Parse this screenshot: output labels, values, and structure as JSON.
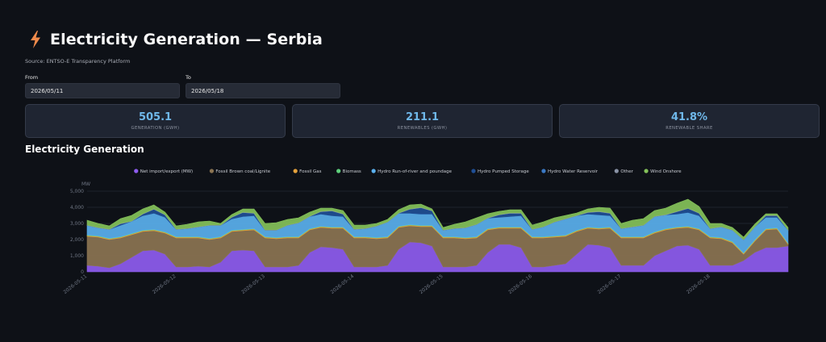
{
  "header": {
    "title": "Electricity Generation — Serbia",
    "icon": "lightning-bolt-icon"
  },
  "source": "Source: ENTSO-E Transparency Platform",
  "filters": {
    "from_label": "From",
    "from_value": "2026/05/11",
    "to_label": "To",
    "to_value": "2026/05/18"
  },
  "metrics": [
    {
      "value": "505.1",
      "label": "GENERATION (GWH)"
    },
    {
      "value": "211.1",
      "label": "RENEWABLES (GWH)"
    },
    {
      "value": "41.8%",
      "label": "RENEWABLE SHARE"
    }
  ],
  "chart_section_title": "Electricity Generation",
  "chart_data": {
    "type": "area",
    "stacked": true,
    "ylabel": "MW",
    "ylim": [
      0,
      5000
    ],
    "yticks": [
      0,
      1000,
      2000,
      3000,
      4000,
      5000
    ],
    "ytick_labels": [
      "0",
      "1,000",
      "2,000",
      "3,000",
      "4,000",
      "5,000"
    ],
    "xlim": [
      "2026-05-11",
      "2026-05-18 21:00"
    ],
    "xticks": [
      "2026-05-11",
      "2026-05-12",
      "2026-05-13",
      "2026-05-14",
      "2026-05-15",
      "2026-05-16",
      "2026-05-17",
      "2026-05-18"
    ],
    "grid": true,
    "legend_position": "top",
    "x": [
      "2026-05-11 00:00",
      "2026-05-11 03:00",
      "2026-05-11 06:00",
      "2026-05-11 09:00",
      "2026-05-11 12:00",
      "2026-05-11 15:00",
      "2026-05-11 18:00",
      "2026-05-11 21:00",
      "2026-05-12 00:00",
      "2026-05-12 03:00",
      "2026-05-12 06:00",
      "2026-05-12 09:00",
      "2026-05-12 12:00",
      "2026-05-12 15:00",
      "2026-05-12 18:00",
      "2026-05-12 21:00",
      "2026-05-13 00:00",
      "2026-05-13 03:00",
      "2026-05-13 06:00",
      "2026-05-13 09:00",
      "2026-05-13 12:00",
      "2026-05-13 15:00",
      "2026-05-13 18:00",
      "2026-05-13 21:00",
      "2026-05-14 00:00",
      "2026-05-14 03:00",
      "2026-05-14 06:00",
      "2026-05-14 09:00",
      "2026-05-14 12:00",
      "2026-05-14 15:00",
      "2026-05-14 18:00",
      "2026-05-14 21:00",
      "2026-05-15 00:00",
      "2026-05-15 03:00",
      "2026-05-15 06:00",
      "2026-05-15 09:00",
      "2026-05-15 12:00",
      "2026-05-15 15:00",
      "2026-05-15 18:00",
      "2026-05-15 21:00",
      "2026-05-16 00:00",
      "2026-05-16 03:00",
      "2026-05-16 06:00",
      "2026-05-16 09:00",
      "2026-05-16 12:00",
      "2026-05-16 15:00",
      "2026-05-16 18:00",
      "2026-05-16 21:00",
      "2026-05-17 00:00",
      "2026-05-17 03:00",
      "2026-05-17 06:00",
      "2026-05-17 09:00",
      "2026-05-17 12:00",
      "2026-05-17 15:00",
      "2026-05-17 18:00",
      "2026-05-17 21:00",
      "2026-05-18 00:00",
      "2026-05-18 03:00",
      "2026-05-18 06:00",
      "2026-05-18 09:00",
      "2026-05-18 12:00",
      "2026-05-18 15:00",
      "2026-05-18 18:00",
      "2026-05-18 21:00"
    ],
    "series": [
      {
        "name": "Net import/export (MW)",
        "color": "#8e5cf0",
        "values": [
          400,
          350,
          250,
          500,
          900,
          1300,
          1350,
          1100,
          300,
          300,
          350,
          300,
          600,
          1300,
          1350,
          1300,
          300,
          300,
          300,
          400,
          1200,
          1550,
          1500,
          1400,
          300,
          300,
          300,
          400,
          1400,
          1850,
          1800,
          1600,
          300,
          300,
          300,
          400,
          1200,
          1700,
          1700,
          1500,
          300,
          300,
          400,
          500,
          1100,
          1700,
          1650,
          1500,
          400,
          400,
          400,
          1000,
          1300,
          1600,
          1650,
          1400,
          400,
          400,
          400,
          700,
          1200,
          1500,
          1500,
          1600
        ]
      },
      {
        "name": "Fossil Brown coal/Lignite",
        "color": "#8b7452",
        "values": [
          1800,
          1800,
          1750,
          1600,
          1400,
          1200,
          1200,
          1300,
          1800,
          1800,
          1750,
          1700,
          1500,
          1200,
          1200,
          1300,
          1800,
          1750,
          1800,
          1700,
          1400,
          1200,
          1200,
          1300,
          1800,
          1800,
          1750,
          1700,
          1350,
          1000,
          1000,
          1200,
          1800,
          1800,
          1750,
          1700,
          1400,
          1000,
          1000,
          1200,
          1800,
          1800,
          1750,
          1700,
          1400,
          1000,
          1000,
          1200,
          1700,
          1700,
          1700,
          1400,
          1300,
          1100,
          1100,
          1200,
          1700,
          1650,
          1400,
          400,
          700,
          1100,
          1150,
          100
        ]
      },
      {
        "name": "Fossil Gas",
        "color": "#e6a23c",
        "values": [
          50,
          50,
          50,
          50,
          50,
          50,
          50,
          50,
          50,
          50,
          50,
          50,
          50,
          50,
          50,
          50,
          50,
          50,
          50,
          50,
          50,
          50,
          50,
          50,
          50,
          50,
          50,
          50,
          50,
          50,
          50,
          50,
          50,
          50,
          50,
          50,
          50,
          50,
          50,
          50,
          50,
          50,
          50,
          50,
          50,
          50,
          50,
          50,
          50,
          50,
          50,
          50,
          50,
          50,
          50,
          50,
          50,
          50,
          50,
          50,
          50,
          50,
          50,
          50
        ]
      },
      {
        "name": "Biomass",
        "color": "#5fd17c",
        "values": [
          30,
          30,
          30,
          30,
          30,
          30,
          30,
          30,
          30,
          30,
          30,
          30,
          30,
          30,
          30,
          30,
          30,
          30,
          30,
          30,
          30,
          30,
          30,
          30,
          30,
          30,
          30,
          30,
          30,
          30,
          30,
          30,
          30,
          30,
          30,
          30,
          30,
          30,
          30,
          30,
          30,
          30,
          30,
          30,
          30,
          30,
          30,
          30,
          30,
          30,
          30,
          30,
          30,
          30,
          30,
          30,
          30,
          30,
          30,
          30,
          30,
          30,
          30,
          30
        ]
      },
      {
        "name": "Hydro Run-of-river and poundage",
        "color": "#5ab0ee",
        "values": [
          600,
          500,
          550,
          700,
          750,
          900,
          1000,
          900,
          450,
          500,
          600,
          800,
          700,
          700,
          800,
          800,
          400,
          450,
          700,
          850,
          750,
          750,
          700,
          650,
          450,
          500,
          700,
          900,
          800,
          700,
          700,
          700,
          400,
          500,
          600,
          750,
          650,
          600,
          650,
          700,
          450,
          600,
          850,
          1000,
          900,
          800,
          800,
          700,
          500,
          600,
          700,
          950,
          850,
          800,
          850,
          800,
          500,
          650,
          700,
          800,
          800,
          700,
          650,
          800
        ]
      },
      {
        "name": "Hydro Pumped Storage",
        "color": "#1f4f96",
        "values": [
          0,
          0,
          0,
          100,
          0,
          100,
          250,
          150,
          0,
          0,
          0,
          0,
          0,
          100,
          250,
          150,
          0,
          0,
          0,
          0,
          0,
          150,
          300,
          150,
          0,
          0,
          0,
          0,
          0,
          250,
          400,
          200,
          0,
          0,
          0,
          0,
          0,
          150,
          200,
          150,
          0,
          0,
          0,
          0,
          0,
          100,
          200,
          150,
          0,
          0,
          0,
          0,
          0,
          150,
          250,
          150,
          0,
          0,
          0,
          0,
          0,
          100,
          100,
          0
        ]
      },
      {
        "name": "Hydro Water Reservoir",
        "color": "#3a78c4",
        "values": [
          0,
          0,
          0,
          0,
          0,
          0,
          0,
          0,
          0,
          0,
          0,
          0,
          0,
          0,
          0,
          0,
          0,
          0,
          0,
          0,
          0,
          0,
          0,
          0,
          0,
          0,
          0,
          0,
          0,
          0,
          0,
          0,
          0,
          0,
          0,
          0,
          0,
          0,
          0,
          0,
          0,
          0,
          0,
          0,
          0,
          0,
          0,
          0,
          0,
          0,
          0,
          0,
          0,
          0,
          0,
          0,
          0,
          0,
          0,
          0,
          0,
          0,
          0,
          0
        ]
      },
      {
        "name": "Other",
        "color": "#8a93a6",
        "values": [
          20,
          20,
          20,
          20,
          20,
          20,
          20,
          20,
          20,
          20,
          20,
          20,
          20,
          20,
          20,
          20,
          20,
          20,
          20,
          20,
          20,
          20,
          20,
          20,
          20,
          20,
          20,
          20,
          20,
          20,
          20,
          20,
          20,
          20,
          20,
          20,
          20,
          20,
          20,
          20,
          20,
          20,
          20,
          20,
          20,
          20,
          20,
          20,
          20,
          20,
          20,
          20,
          20,
          20,
          20,
          20,
          20,
          20,
          20,
          20,
          20,
          20,
          20,
          20
        ]
      },
      {
        "name": "Wind Onshore",
        "color": "#84c25a",
        "values": [
          300,
          250,
          200,
          300,
          350,
          300,
          250,
          150,
          200,
          250,
          300,
          250,
          100,
          150,
          200,
          250,
          400,
          450,
          350,
          300,
          250,
          200,
          150,
          200,
          250,
          200,
          150,
          150,
          200,
          250,
          200,
          100,
          150,
          250,
          350,
          400,
          250,
          200,
          200,
          200,
          250,
          300,
          250,
          200,
          150,
          200,
          250,
          300,
          300,
          400,
          400,
          350,
          400,
          500,
          550,
          400,
          300,
          200,
          150,
          150,
          150,
          100,
          100,
          150
        ]
      }
    ]
  }
}
